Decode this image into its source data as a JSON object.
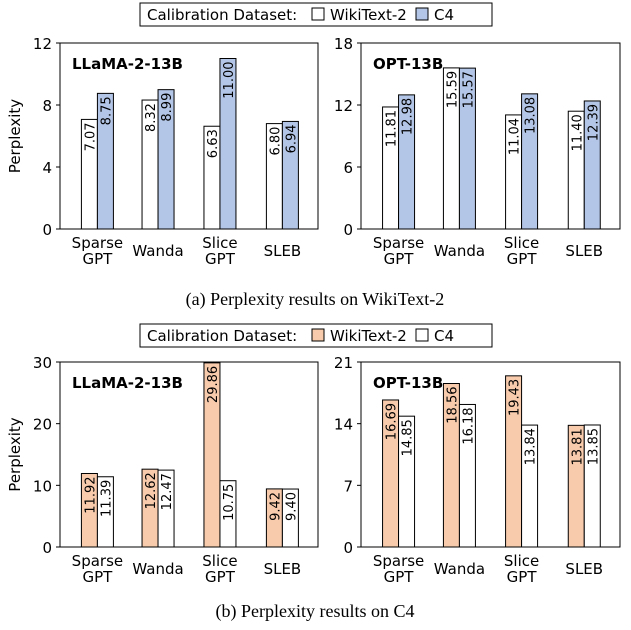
{
  "legends": [
    {
      "title": "Calibration Dataset:",
      "entries": [
        {
          "name": "WikiText-2",
          "color": "#ffffff"
        },
        {
          "name": "C4",
          "color": "#b4c6e7"
        }
      ]
    },
    {
      "title": "Calibration Dataset:",
      "entries": [
        {
          "name": "WikiText-2",
          "color": "#f8cbad"
        },
        {
          "name": "C4",
          "color": "#ffffff"
        }
      ]
    }
  ],
  "captions": [
    "(a) Perplexity results on WikiText-2",
    "(b) Perplexity results on C4"
  ],
  "chart_data": [
    {
      "type": "bar",
      "title": "LLaMA-2-13B",
      "ylabel": "Perplexity",
      "ylim": [
        0,
        12
      ],
      "yticks": [
        0,
        4,
        8,
        12
      ],
      "categories": [
        "Sparse GPT",
        "Wanda",
        "Slice GPT",
        "SLEB"
      ],
      "series": [
        {
          "name": "WikiText-2",
          "color": "#ffffff",
          "values": [
            7.07,
            8.32,
            6.63,
            6.8
          ],
          "labels": [
            "7.07",
            "8.32",
            "6.63",
            "6.80"
          ]
        },
        {
          "name": "C4",
          "color": "#b4c6e7",
          "values": [
            8.75,
            8.99,
            11.0,
            6.94
          ],
          "labels": [
            "8.75",
            "8.99",
            "11.00",
            "6.94"
          ]
        }
      ]
    },
    {
      "type": "bar",
      "title": "OPT-13B",
      "ylabel": "",
      "ylim": [
        0,
        18
      ],
      "yticks": [
        0,
        6,
        12,
        18
      ],
      "categories": [
        "Sparse GPT",
        "Wanda",
        "Slice GPT",
        "SLEB"
      ],
      "series": [
        {
          "name": "WikiText-2",
          "color": "#ffffff",
          "values": [
            11.81,
            15.59,
            11.04,
            11.4
          ],
          "labels": [
            "11.81",
            "15.59",
            "11.04",
            "11.40"
          ]
        },
        {
          "name": "C4",
          "color": "#b4c6e7",
          "values": [
            12.98,
            15.57,
            13.08,
            12.39
          ],
          "labels": [
            "12.98",
            "15.57",
            "13.08",
            "12.39"
          ]
        }
      ]
    },
    {
      "type": "bar",
      "title": "LLaMA-2-13B",
      "ylabel": "Perplexity",
      "ylim": [
        0,
        30
      ],
      "yticks": [
        0,
        10,
        20,
        30
      ],
      "categories": [
        "Sparse GPT",
        "Wanda",
        "Slice GPT",
        "SLEB"
      ],
      "series": [
        {
          "name": "WikiText-2",
          "color": "#f8cbad",
          "values": [
            11.92,
            12.62,
            29.86,
            9.42
          ],
          "labels": [
            "11.92",
            "12.62",
            "29.86",
            "9.42"
          ]
        },
        {
          "name": "C4",
          "color": "#ffffff",
          "values": [
            11.39,
            12.47,
            10.75,
            9.4
          ],
          "labels": [
            "11.39",
            "12.47",
            "10.75",
            "9.40"
          ]
        }
      ]
    },
    {
      "type": "bar",
      "title": "OPT-13B",
      "ylabel": "",
      "ylim": [
        0,
        21
      ],
      "yticks": [
        0,
        7,
        14,
        21
      ],
      "categories": [
        "Sparse GPT",
        "Wanda",
        "Slice GPT",
        "SLEB"
      ],
      "series": [
        {
          "name": "WikiText-2",
          "color": "#f8cbad",
          "values": [
            16.69,
            18.56,
            19.43,
            13.81
          ],
          "labels": [
            "16.69",
            "18.56",
            "19.43",
            "13.81"
          ]
        },
        {
          "name": "C4",
          "color": "#ffffff",
          "values": [
            14.85,
            16.18,
            13.84,
            13.85
          ],
          "labels": [
            "14.85",
            "16.18",
            "13.84",
            "13.85"
          ]
        }
      ]
    }
  ]
}
